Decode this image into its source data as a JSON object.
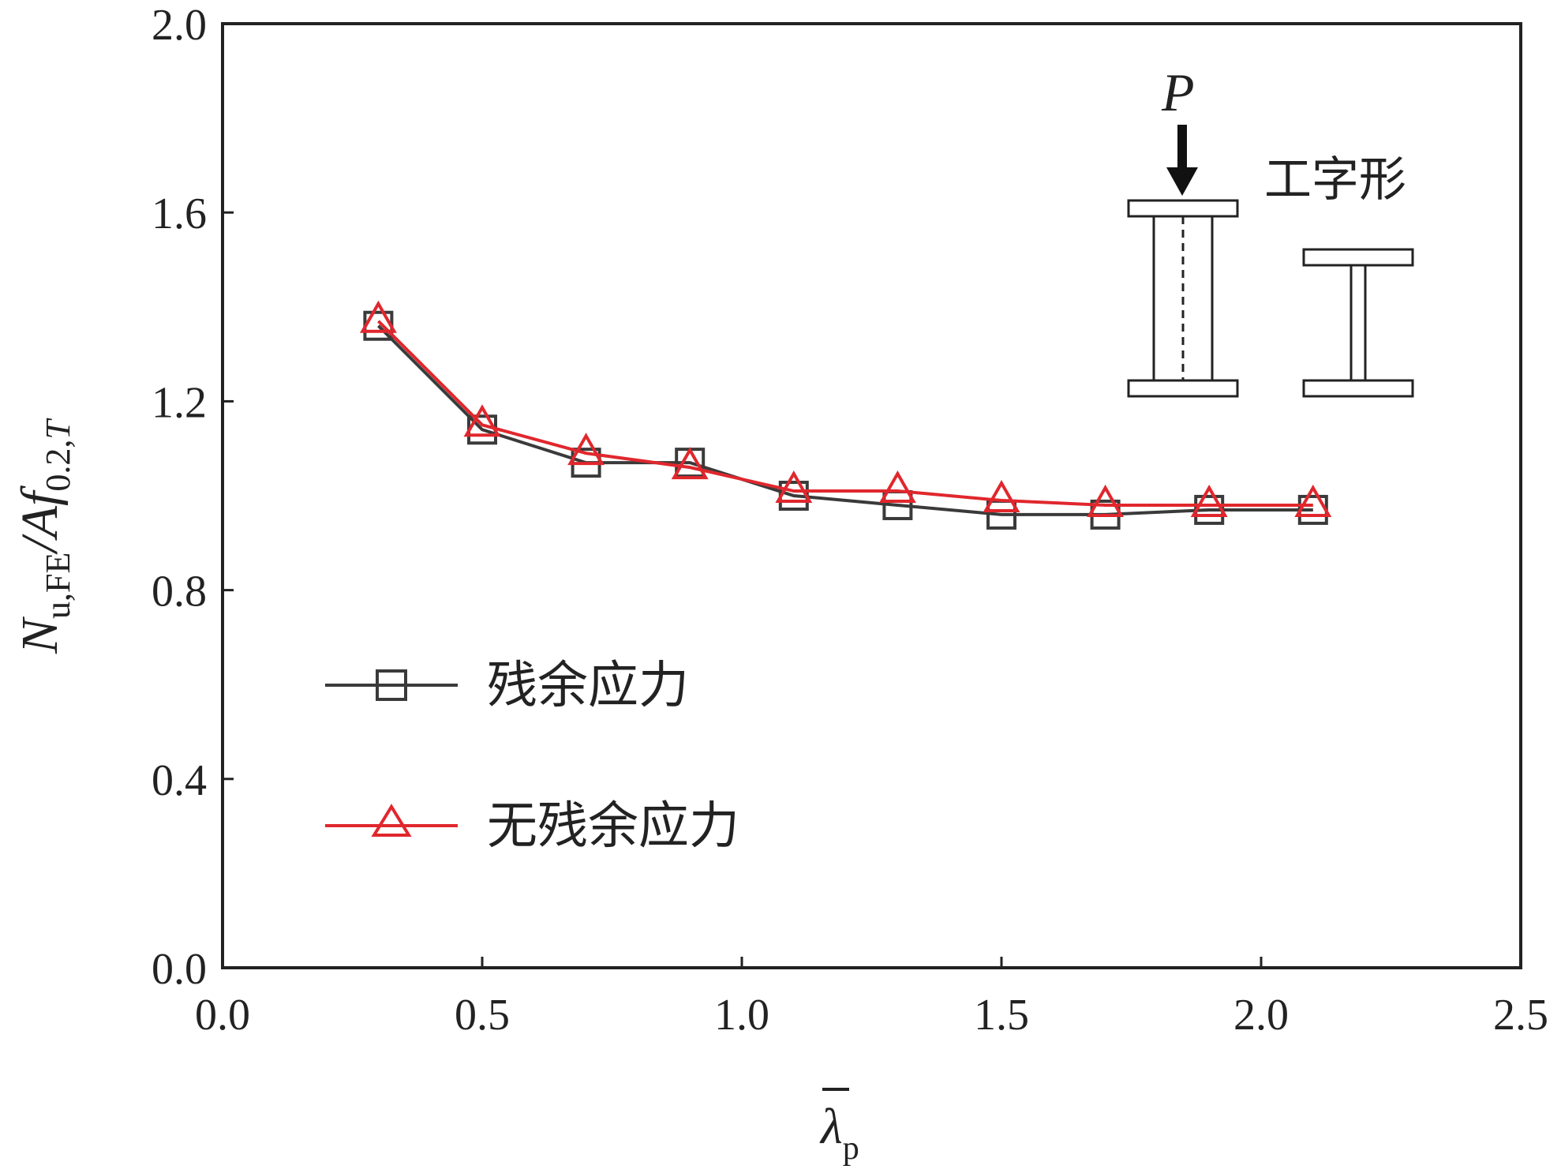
{
  "chart_data": {
    "type": "line",
    "x": [
      0.3,
      0.5,
      0.7,
      0.9,
      1.1,
      1.3,
      1.5,
      1.7,
      1.9,
      2.1
    ],
    "series": [
      {
        "name": "残余应力",
        "values": [
          1.36,
          1.14,
          1.07,
          1.07,
          1.0,
          0.98,
          0.96,
          0.96,
          0.97,
          0.97
        ],
        "color": "#3a3a3a",
        "marker": "square"
      },
      {
        "name": "无残余应力",
        "values": [
          1.37,
          1.15,
          1.09,
          1.06,
          1.01,
          1.01,
          0.99,
          0.98,
          0.98,
          0.98
        ],
        "color": "#e0272d",
        "marker": "triangle"
      }
    ],
    "xlim": [
      0.0,
      2.5
    ],
    "ylim": [
      0.0,
      2.0
    ],
    "xticks": [
      "0.0",
      "0.5",
      "1.0",
      "1.5",
      "2.0",
      "2.5"
    ],
    "yticks": [
      "0.0",
      "0.4",
      "0.8",
      "1.2",
      "1.6",
      "2.0"
    ],
    "xlabel": {
      "symbol": "λ",
      "sub": "p"
    },
    "ylabel": {
      "n": "N",
      "nsub": "u,FE",
      "mid": "/A",
      "f": "f",
      "fsub1": "0.2,",
      "fsub2": "T"
    },
    "legend_position": "bottom-left",
    "grid": false
  },
  "inset": {
    "load_label": "P",
    "section_label": "工字形"
  }
}
